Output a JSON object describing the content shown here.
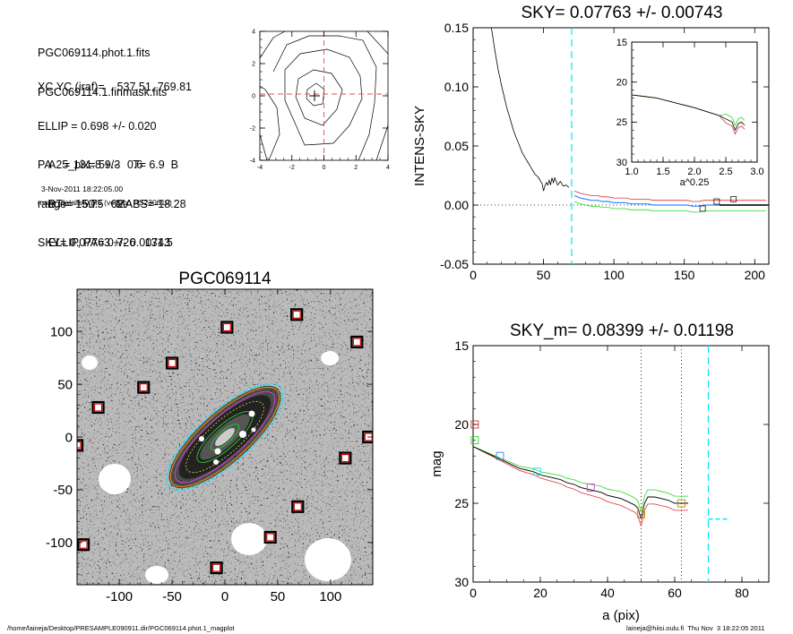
{
  "info": {
    "header_lines": [
      "PGC069114.phot.1.fits",
      "PGC069114.1.finmask.fits"
    ],
    "param_lines": [
      "XC,YC (iraf)=    537.51, 769.81",
      "ELLIP = 0.698 +/- 0.020",
      "PA    = 131.8 +/-   0.6",
      "range=   50.-   62.",
      "SKY= 0.07763 +/- 0.00743"
    ],
    "result_lines": [
      "A25_pix= 59.3    T= 6.9  B",
      "BT=  15.75    MABS=-18.28",
      "ELLIP, PA= 0.726   131.5"
    ],
    "date": "3-Nov-2011 18:22:05.00",
    "program": "make_datalist0.pro (version HS230610)"
  },
  "footer": {
    "left": "/home/laineja/Desktop/PRESAMPLE090911.dir/PGC069114.phot.1_magplot",
    "right": "laineja@hiisi.oulu.fi  Thu Nov  3 18:22:05 2011"
  },
  "colors": {
    "cyan": "#00e5ff",
    "red": "#e03030",
    "green": "#22dd22",
    "blue": "#3388ff",
    "magenta": "#cc44cc",
    "orange": "#cc8800"
  },
  "chart_data": [
    {
      "type": "line",
      "title": "SKY= 0.07763 +/- 0.00743",
      "xlabel": "",
      "ylabel": "INTENS-SKY",
      "xlim": [
        0,
        210
      ],
      "ylim": [
        -0.05,
        0.15
      ],
      "xticks": [
        "0",
        "50",
        "100",
        "150",
        "200"
      ],
      "yticks": [
        "-0.05",
        "0.00",
        "0.05",
        "0.10",
        "0.15"
      ],
      "sky_marker_x": 70,
      "series": [
        {
          "x": [
            13,
            14,
            15,
            16,
            17,
            18,
            19,
            20,
            21,
            22,
            23,
            24,
            25,
            26,
            27,
            28,
            29,
            30,
            31,
            32,
            33,
            34,
            35,
            36,
            37,
            38,
            39,
            40,
            41,
            42,
            43,
            44,
            45,
            46,
            47,
            48,
            49,
            50,
            51,
            52,
            53,
            54,
            55,
            56,
            57,
            58,
            60,
            62,
            64,
            66,
            68
          ],
          "y": [
            0.15,
            0.142,
            0.134,
            0.127,
            0.12,
            0.113,
            0.108,
            0.102,
            0.097,
            0.092,
            0.087,
            0.082,
            0.078,
            0.074,
            0.07,
            0.066,
            0.062,
            0.059,
            0.056,
            0.053,
            0.05,
            0.047,
            0.044,
            0.042,
            0.04,
            0.038,
            0.036,
            0.034,
            0.032,
            0.03,
            0.028,
            0.026,
            0.025,
            0.024,
            0.022,
            0.02,
            0.018,
            0.012,
            0.016,
            0.019,
            0.017,
            0.021,
            0.017,
            0.023,
            0.019,
            0.023,
            0.017,
            0.02,
            0.016,
            0.017,
            0.015
          ]
        },
        {
          "x": [
            72,
            76,
            80,
            84,
            88,
            92,
            96,
            100,
            104,
            108,
            112,
            116,
            120,
            124,
            128,
            132,
            136,
            140,
            144,
            148,
            152,
            156,
            160,
            164,
            168,
            172,
            176,
            180,
            184,
            188,
            192,
            200,
            208
          ],
          "y": [
            0.008,
            0.006,
            0.005,
            0.004,
            0.004,
            0.003,
            0.003,
            0.002,
            0.002,
            0.002,
            0.001,
            0.001,
            0.001,
            0.001,
            0.0,
            0.0,
            0.0,
            0.0,
            0.0,
            0.0,
            0.0,
            -0.001,
            -0.001,
            0.0,
            0.0,
            0.0,
            0.0,
            0.0,
            0.0,
            0.0,
            0.0,
            0.0,
            0.0
          ]
        }
      ],
      "boxes": [
        {
          "x": 163,
          "y": -0.003
        },
        {
          "x": 173,
          "y": 0.003
        },
        {
          "x": 185,
          "y": 0.005
        }
      ],
      "inset": {
        "xlabel": "a^0.25",
        "xlim": [
          1.0,
          3.0
        ],
        "ylim": [
          15,
          30
        ],
        "xticks": [
          "1.0",
          "1.5",
          "2.0",
          "2.5",
          "3.0"
        ],
        "yticks": [
          "15",
          "20",
          "25",
          "30"
        ],
        "series": [
          {
            "x": [
              1.0,
              1.2,
              1.4,
              1.6,
              1.8,
              2.0,
              2.2,
              2.4,
              2.5,
              2.6,
              2.65,
              2.7,
              2.75,
              2.8
            ],
            "y": [
              21.6,
              21.8,
              22.0,
              22.4,
              22.8,
              23.2,
              23.7,
              24.2,
              24.6,
              25.0,
              26.0,
              25.2,
              25.0,
              25.4
            ]
          }
        ]
      }
    },
    {
      "type": "line",
      "title": "SKY_m=  0.08399 +/- 0.01198",
      "xlabel": "a (pix)",
      "ylabel": "mag",
      "xlim": [
        0,
        88
      ],
      "ylim": [
        30,
        15
      ],
      "xticks": [
        "0",
        "20",
        "40",
        "60",
        "80"
      ],
      "yticks": [
        "15",
        "20",
        "25",
        "30"
      ],
      "range_lines": [
        50,
        62
      ],
      "sky_marker_x": 70,
      "series": [
        {
          "name": "",
          "x": [
            0,
            2,
            4,
            6,
            8,
            10,
            12,
            14,
            16,
            18,
            20,
            22,
            24,
            26,
            28,
            30,
            32,
            34,
            36,
            38,
            40,
            42,
            44,
            46,
            48,
            49,
            50,
            51,
            52,
            54,
            56,
            58,
            60,
            62,
            64
          ],
          "y": [
            21.4,
            21.6,
            21.8,
            22.0,
            22.2,
            22.4,
            22.6,
            22.8,
            22.9,
            23.0,
            23.2,
            23.3,
            23.4,
            23.5,
            23.7,
            23.8,
            24.0,
            24.1,
            24.2,
            24.3,
            24.5,
            24.6,
            24.7,
            24.9,
            25.1,
            25.3,
            26.0,
            25.0,
            24.6,
            24.6,
            24.7,
            24.8,
            25.0,
            25.0,
            25.0
          ]
        }
      ],
      "boxes": [
        {
          "x": 0.5,
          "y": 20.0,
          "color": "red"
        },
        {
          "x": 0.5,
          "y": 21.0,
          "color": "green"
        },
        {
          "x": 8,
          "y": 22.0,
          "color": "blue"
        },
        {
          "x": 19,
          "y": 23.0,
          "color": "cyan"
        },
        {
          "x": 35,
          "y": 24.0,
          "color": "magenta"
        },
        {
          "x": 50,
          "y": 25.7,
          "color": "orange"
        },
        {
          "x": 62,
          "y": 25.0,
          "color": "orange"
        }
      ],
      "sky_mag": {
        "x": [
          70,
          76
        ],
        "y": 26.0
      }
    },
    {
      "type": "contour",
      "title": "",
      "xlim": [
        -4,
        4
      ],
      "ylim": [
        -4,
        4
      ],
      "xticks": [
        "-4",
        "-2",
        "0",
        "2",
        "4"
      ],
      "yticks": [
        "-4",
        "-2",
        "0",
        "2",
        "4"
      ]
    },
    {
      "type": "image",
      "title": "PGC069114",
      "xlim": [
        -140,
        140
      ],
      "ylim": [
        -140,
        140
      ],
      "xticks": [
        "-100",
        "-50",
        "0",
        "50",
        "100"
      ],
      "yticks": [
        "-100",
        "-50",
        "0",
        "50",
        "100"
      ],
      "stars": [
        {
          "x": 68,
          "y": 116
        },
        {
          "x": 2,
          "y": 104
        },
        {
          "x": 125,
          "y": 90
        },
        {
          "x": -50,
          "y": 70
        },
        {
          "x": -77,
          "y": 47
        },
        {
          "x": -120,
          "y": 28
        },
        {
          "x": -140,
          "y": -8
        },
        {
          "x": 136,
          "y": 0
        },
        {
          "x": 114,
          "y": -20
        },
        {
          "x": 69,
          "y": -66
        },
        {
          "x": 43,
          "y": -95
        },
        {
          "x": -134,
          "y": -102
        },
        {
          "x": -8,
          "y": -124
        }
      ]
    }
  ]
}
